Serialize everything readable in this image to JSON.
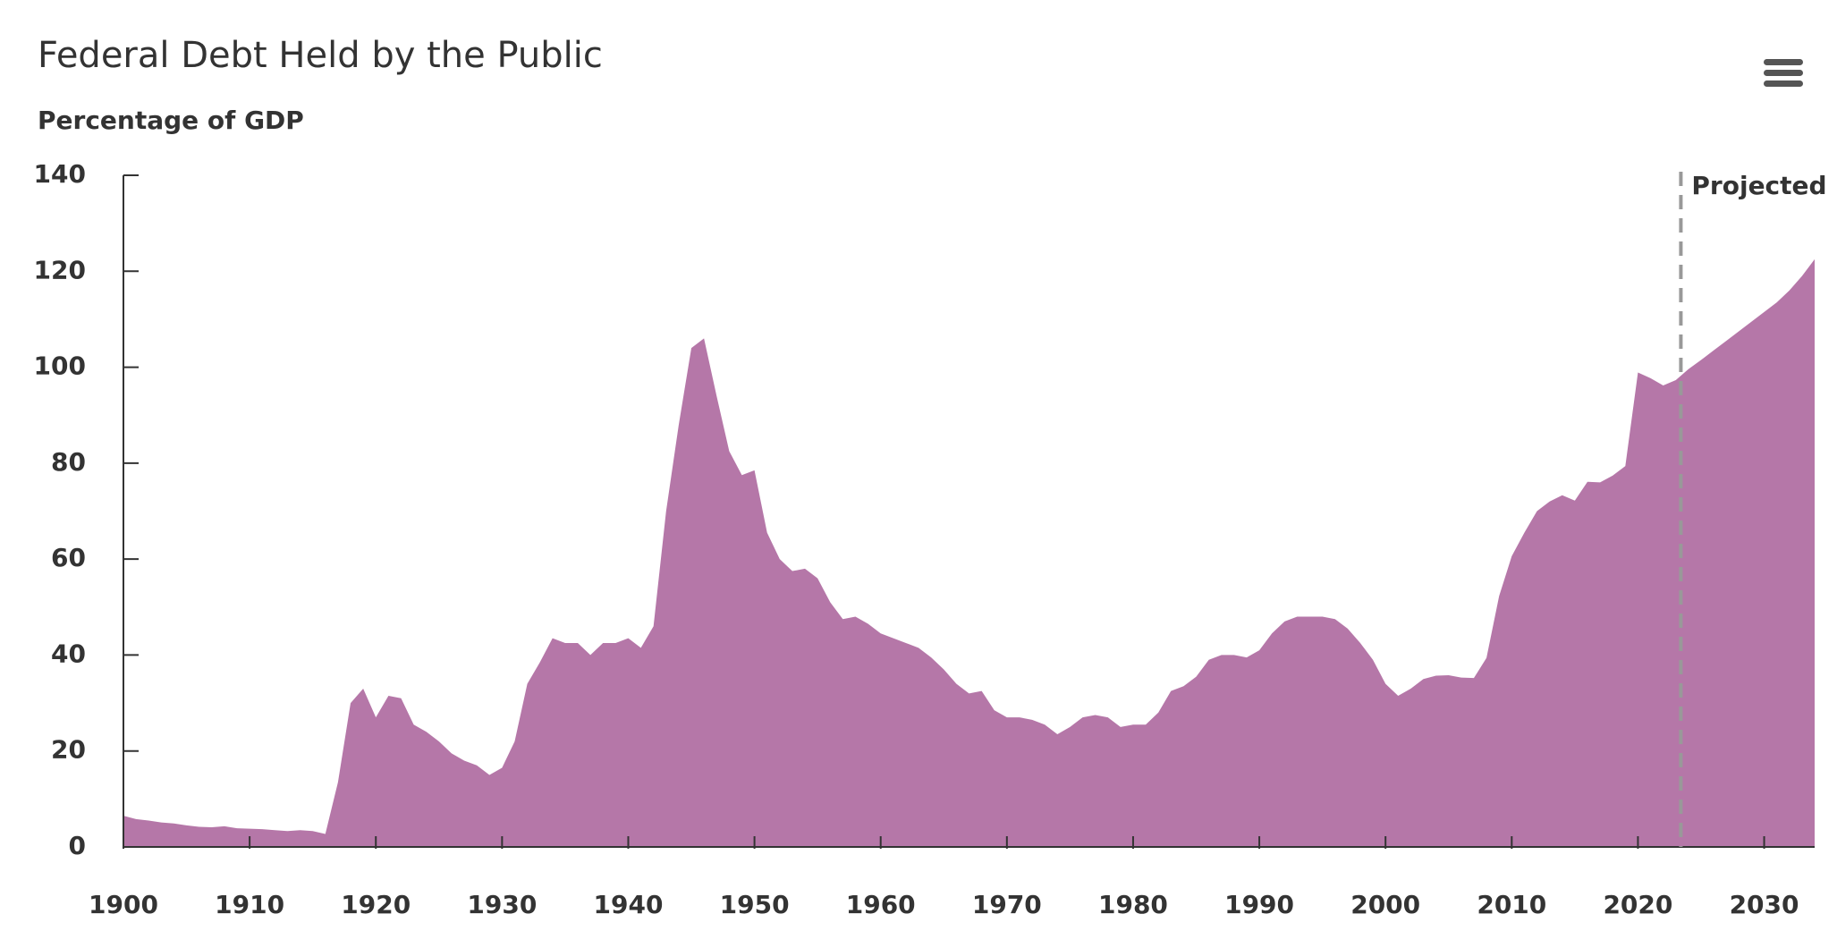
{
  "chart_data": {
    "type": "area",
    "title": "Federal Debt Held by the Public",
    "subtitle": "Percentage of GDP",
    "x": [
      1900,
      1901,
      1902,
      1903,
      1904,
      1905,
      1906,
      1907,
      1908,
      1909,
      1910,
      1911,
      1912,
      1913,
      1914,
      1915,
      1916,
      1917,
      1918,
      1919,
      1920,
      1921,
      1922,
      1923,
      1924,
      1925,
      1926,
      1927,
      1928,
      1929,
      1930,
      1931,
      1932,
      1933,
      1934,
      1935,
      1936,
      1937,
      1938,
      1939,
      1940,
      1941,
      1942,
      1943,
      1944,
      1945,
      1946,
      1947,
      1948,
      1949,
      1950,
      1951,
      1952,
      1953,
      1954,
      1955,
      1956,
      1957,
      1958,
      1959,
      1960,
      1961,
      1962,
      1963,
      1964,
      1965,
      1966,
      1967,
      1968,
      1969,
      1970,
      1971,
      1972,
      1973,
      1974,
      1975,
      1976,
      1977,
      1978,
      1979,
      1980,
      1981,
      1982,
      1983,
      1984,
      1985,
      1986,
      1987,
      1988,
      1989,
      1990,
      1991,
      1992,
      1993,
      1994,
      1995,
      1996,
      1997,
      1998,
      1999,
      2000,
      2001,
      2002,
      2003,
      2004,
      2005,
      2006,
      2007,
      2008,
      2009,
      2010,
      2011,
      2012,
      2013,
      2014,
      2015,
      2016,
      2017,
      2018,
      2019,
      2020,
      2021,
      2022,
      2023,
      2024,
      2025,
      2026,
      2027,
      2028,
      2029,
      2030,
      2031,
      2032,
      2033,
      2034
    ],
    "values": [
      6.5,
      5.8,
      5.5,
      5.1,
      4.9,
      4.5,
      4.2,
      4.1,
      4.3,
      3.9,
      3.8,
      3.7,
      3.5,
      3.3,
      3.5,
      3.3,
      2.7,
      13.5,
      30,
      33,
      27,
      31.5,
      31,
      25.5,
      24,
      22,
      19.5,
      18,
      17,
      15,
      16.5,
      22,
      34,
      38.5,
      43.5,
      42.5,
      42.5,
      40,
      42.5,
      42.5,
      43.5,
      41.5,
      46,
      70,
      88,
      104,
      106,
      94,
      82.5,
      77.5,
      78.5,
      65.5,
      60,
      57.5,
      58,
      56,
      51,
      47.5,
      48,
      46.5,
      44.5,
      43.5,
      42.5,
      41.5,
      39.5,
      37,
      34,
      32,
      32.5,
      28.5,
      27,
      27,
      26.5,
      25.5,
      23.5,
      25,
      27,
      27.5,
      27,
      25,
      25.5,
      25.5,
      28,
      32.5,
      33.5,
      35.5,
      39,
      40,
      40,
      39.5,
      41,
      44.5,
      47,
      48,
      48,
      48,
      47.5,
      45.5,
      42.5,
      39,
      34,
      31.5,
      33,
      35,
      35.7,
      35.8,
      35.3,
      35.2,
      39.4,
      52.3,
      60.6,
      65.5,
      70,
      72,
      73.3,
      72.2,
      76.1,
      76,
      77.4,
      79.4,
      98.9,
      97.7,
      96.2,
      97.3,
      99.6,
      101.5,
      103.5,
      105.5,
      107.5,
      109.5,
      111.5,
      113.5,
      116,
      119,
      122.5
    ],
    "color": "#b577a8",
    "xlim": [
      1900,
      2034
    ],
    "xticks": [
      1900,
      1910,
      1920,
      1930,
      1940,
      1950,
      1960,
      1970,
      1980,
      1990,
      2000,
      2010,
      2020,
      2030
    ],
    "ylim": [
      0,
      140
    ],
    "yticks": [
      0,
      20,
      40,
      60,
      80,
      100,
      120,
      140
    ],
    "annotation": {
      "text": "Projected",
      "x": 2023.4
    }
  }
}
